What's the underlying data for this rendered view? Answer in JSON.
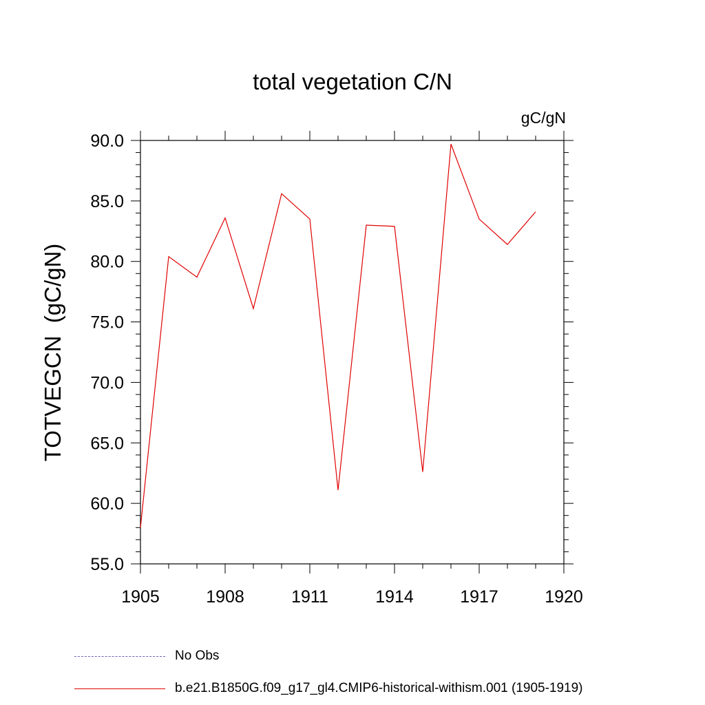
{
  "chart_data": {
    "type": "line",
    "title": "total vegetation C/N",
    "units_label": "gC/gN",
    "ylabel": "TOTVEGCN  (gC/gN)",
    "xlabel": "",
    "xlim": [
      1905,
      1920
    ],
    "ylim": [
      55.0,
      90.0
    ],
    "x_ticks": [
      "1905",
      "1908",
      "1911",
      "1914",
      "1917",
      "1920"
    ],
    "y_ticks": [
      "55.0",
      "60.0",
      "65.0",
      "70.0",
      "75.0",
      "80.0",
      "85.0",
      "90.0"
    ],
    "grid": false,
    "legend_placement": "bottom",
    "series": [
      {
        "name": "b.e21.B1850G.f09_g17_gl4.CMIP6-historical-withism.001 (1905-1919)",
        "color": "#e00000",
        "style": "solid",
        "x": [
          1905,
          1906,
          1907,
          1908,
          1909,
          1910,
          1911,
          1912,
          1913,
          1914,
          1915,
          1916,
          1917,
          1918,
          1919
        ],
        "values": [
          58.0,
          80.4,
          78.7,
          83.6,
          76.1,
          85.6,
          83.5,
          61.1,
          83.0,
          82.9,
          62.6,
          89.7,
          83.5,
          81.4,
          84.1
        ]
      },
      {
        "name": "No Obs",
        "color": "#6f5fb8",
        "style": "dashed",
        "x": [],
        "values": []
      }
    ]
  }
}
